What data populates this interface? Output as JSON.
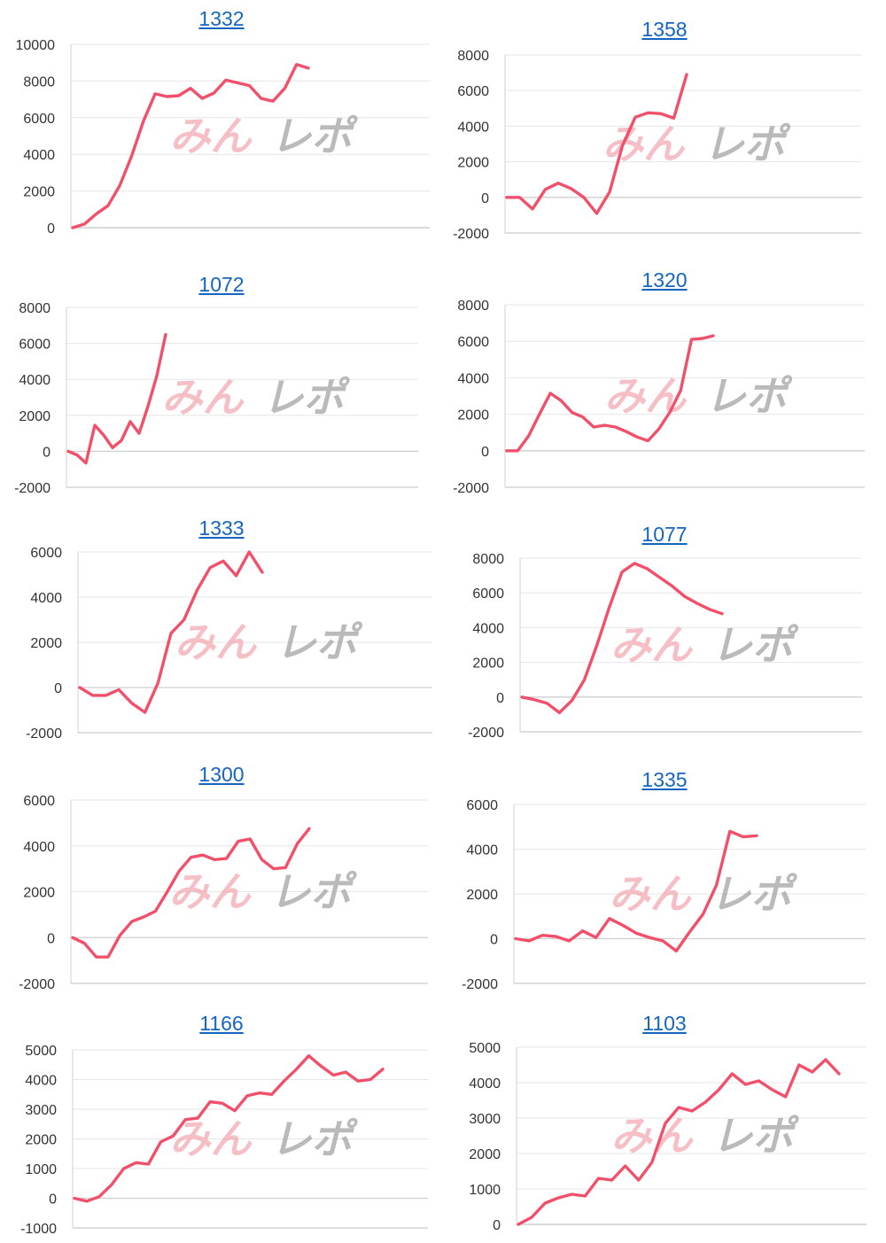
{
  "watermark": {
    "part1": "みん",
    "part2": "レポ"
  },
  "line_color": "#f2506a",
  "chart_data": [
    {
      "type": "line",
      "title": "1332",
      "ylim": [
        0,
        10000
      ],
      "yticks": [
        10000,
        8000,
        6000,
        4000,
        2000,
        0
      ],
      "values": [
        0,
        200,
        750,
        1200,
        2300,
        3900,
        5800,
        7300,
        7150,
        7200,
        7600,
        7050,
        7350,
        8050,
        7900,
        7750,
        7050,
        6900,
        7600,
        8900,
        8700
      ]
    },
    {
      "type": "line",
      "title": "1358",
      "ylim": [
        -2000,
        8000
      ],
      "yticks": [
        8000,
        6000,
        4000,
        2000,
        0,
        -2000
      ],
      "values": [
        0,
        0,
        -650,
        450,
        800,
        500,
        0,
        -900,
        300,
        2900,
        4500,
        4750,
        4700,
        4450,
        6900
      ]
    },
    {
      "type": "line",
      "title": "1072",
      "ylim": [
        -2000,
        8000
      ],
      "yticks": [
        8000,
        6000,
        4000,
        2000,
        0,
        -2000
      ],
      "values": [
        0,
        -200,
        -650,
        1450,
        900,
        200,
        600,
        1650,
        1000,
        2500,
        4200,
        6500
      ]
    },
    {
      "type": "line",
      "title": "1320",
      "ylim": [
        -2000,
        8000
      ],
      "yticks": [
        8000,
        6000,
        4000,
        2000,
        0,
        -2000
      ],
      "values": [
        0,
        0,
        800,
        2000,
        3150,
        2750,
        2100,
        1850,
        1300,
        1400,
        1300,
        1050,
        750,
        550,
        1200,
        2100,
        3300,
        6100,
        6150,
        6300
      ]
    },
    {
      "type": "line",
      "title": "1333",
      "ylim": [
        -2000,
        6000
      ],
      "yticks": [
        6000,
        4000,
        2000,
        0,
        -2000
      ],
      "values": [
        0,
        -350,
        -350,
        -100,
        -700,
        -1100,
        200,
        2400,
        3000,
        4300,
        5300,
        5600,
        4950,
        6000,
        5100
      ]
    },
    {
      "type": "line",
      "title": "1077",
      "ylim": [
        -2000,
        8000
      ],
      "yticks": [
        8000,
        6000,
        4000,
        2000,
        0,
        -2000
      ],
      "values": [
        0,
        -150,
        -350,
        -900,
        -200,
        1000,
        3000,
        5200,
        7200,
        7700,
        7400,
        6900,
        6400,
        5800,
        5400,
        5050,
        4800
      ]
    },
    {
      "type": "line",
      "title": "1300",
      "ylim": [
        -2000,
        6000
      ],
      "yticks": [
        6000,
        4000,
        2000,
        0,
        -2000
      ],
      "values": [
        0,
        -250,
        -850,
        -850,
        100,
        700,
        900,
        1150,
        2000,
        2900,
        3500,
        3600,
        3400,
        3450,
        4200,
        4300,
        3400,
        3000,
        3050,
        4100,
        4750
      ]
    },
    {
      "type": "line",
      "title": "1335",
      "ylim": [
        -2000,
        6000
      ],
      "yticks": [
        6000,
        4000,
        2000,
        0,
        -2000
      ],
      "values": [
        0,
        -100,
        150,
        100,
        -100,
        350,
        50,
        900,
        600,
        250,
        50,
        -100,
        -550,
        300,
        1100,
        2400,
        4800,
        4550,
        4600
      ]
    },
    {
      "type": "line",
      "title": "1166",
      "ylim": [
        -1000,
        5000
      ],
      "yticks": [
        5000,
        4000,
        3000,
        2000,
        1000,
        0,
        -1000
      ],
      "values": [
        0,
        -100,
        50,
        450,
        1000,
        1200,
        1150,
        1900,
        2100,
        2650,
        2700,
        3250,
        3200,
        2950,
        3450,
        3550,
        3500,
        3950,
        4350,
        4800,
        4450,
        4150,
        4250,
        3950,
        4000,
        4350
      ]
    },
    {
      "type": "line",
      "title": "1103",
      "ylim": [
        0,
        5000
      ],
      "yticks": [
        5000,
        4000,
        3000,
        2000,
        1000,
        0
      ],
      "values": [
        0,
        200,
        600,
        750,
        850,
        800,
        1300,
        1250,
        1650,
        1250,
        1750,
        2850,
        3300,
        3200,
        3450,
        3800,
        4250,
        3950,
        4050,
        3800,
        3600,
        4500,
        4300,
        4650,
        4250
      ]
    }
  ]
}
